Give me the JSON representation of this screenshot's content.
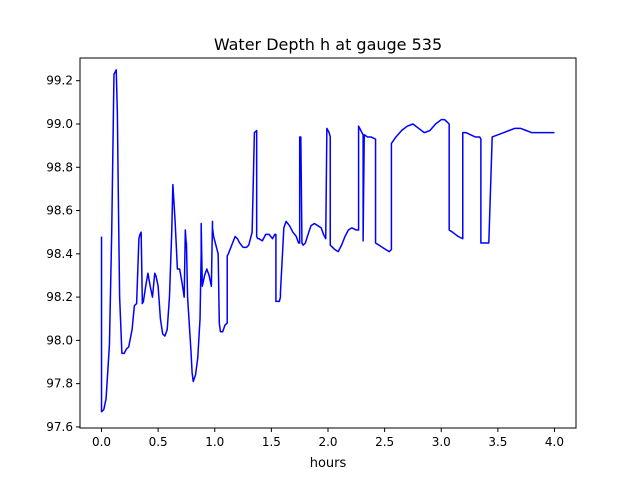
{
  "chart_data": {
    "type": "line",
    "title": "Water Depth h at gauge 535",
    "xlabel": "hours",
    "ylabel": "",
    "xlim": [
      -0.19,
      4.19
    ],
    "ylim": [
      97.595,
      99.305
    ],
    "grid": false,
    "legend": "none",
    "x_ticks": [
      0.0,
      0.5,
      1.0,
      1.5,
      2.0,
      2.5,
      3.0,
      3.5,
      4.0
    ],
    "x_tick_labels": [
      "0.0",
      "0.5",
      "1.0",
      "1.5",
      "2.0",
      "2.5",
      "3.0",
      "3.5",
      "4.0"
    ],
    "y_ticks": [
      97.6,
      97.8,
      98.0,
      98.2,
      98.4,
      98.6,
      98.8,
      99.0,
      99.2
    ],
    "y_tick_labels": [
      "97.6",
      "97.8",
      "98.0",
      "98.2",
      "98.4",
      "98.6",
      "98.8",
      "99.0",
      "99.2"
    ],
    "series": [
      {
        "color": "#0000ff",
        "x": [
          0.0,
          0.0,
          0.0,
          0.02,
          0.04,
          0.07,
          0.09,
          0.11,
          0.13,
          0.14,
          0.15,
          0.16,
          0.18,
          0.2,
          0.22,
          0.24,
          0.27,
          0.29,
          0.31,
          0.33,
          0.34,
          0.35,
          0.36,
          0.36,
          0.37,
          0.39,
          0.41,
          0.43,
          0.45,
          0.47,
          0.48,
          0.5,
          0.52,
          0.54,
          0.56,
          0.58,
          0.6,
          0.62,
          0.63,
          0.65,
          0.67,
          0.69,
          0.71,
          0.73,
          0.74,
          0.75,
          0.75,
          0.76,
          0.79,
          0.8,
          0.81,
          0.83,
          0.85,
          0.87,
          0.88,
          0.88,
          0.89,
          0.91,
          0.93,
          0.95,
          0.97,
          0.98,
          0.98,
          0.99,
          1.01,
          1.03,
          1.04,
          1.05,
          1.07,
          1.09,
          1.11,
          1.11,
          1.12,
          1.15,
          1.18,
          1.2,
          1.22,
          1.25,
          1.28,
          1.3,
          1.33,
          1.35,
          1.37,
          1.37,
          1.38,
          1.39,
          1.42,
          1.45,
          1.48,
          1.51,
          1.53,
          1.54,
          1.54,
          1.57,
          1.58,
          1.58,
          1.61,
          1.63,
          1.66,
          1.69,
          1.72,
          1.74,
          1.75,
          1.75,
          1.76,
          1.77,
          1.78,
          1.8,
          1.83,
          1.85,
          1.88,
          1.91,
          1.94,
          1.96,
          1.98,
          1.99,
          2.01,
          2.02,
          2.02,
          2.04,
          2.06,
          2.09,
          2.12,
          2.15,
          2.18,
          2.21,
          2.25,
          2.27,
          2.27,
          2.29,
          2.31,
          2.31,
          2.32,
          2.35,
          2.38,
          2.42,
          2.42,
          2.45,
          2.48,
          2.51,
          2.54,
          2.56,
          2.56,
          2.6,
          2.65,
          2.7,
          2.75,
          2.8,
          2.85,
          2.9,
          2.95,
          3.0,
          3.03,
          3.05,
          3.07,
          3.07,
          3.1,
          3.15,
          3.19,
          3.19,
          3.22,
          3.26,
          3.3,
          3.34,
          3.35,
          3.35,
          3.38,
          3.42,
          3.42,
          3.45,
          3.5,
          3.55,
          3.6,
          3.65,
          3.7,
          3.75,
          3.8,
          3.85,
          3.9,
          3.95,
          4.0
        ],
        "y": [
          98.48,
          97.98,
          97.67,
          97.68,
          97.73,
          97.98,
          98.5,
          99.23,
          99.25,
          99.05,
          98.6,
          98.2,
          97.94,
          97.94,
          97.96,
          97.97,
          98.05,
          98.16,
          98.17,
          98.47,
          98.49,
          98.5,
          98.19,
          98.17,
          98.18,
          98.25,
          98.31,
          98.25,
          98.2,
          98.31,
          98.3,
          98.25,
          98.1,
          98.03,
          98.02,
          98.05,
          98.2,
          98.5,
          98.72,
          98.55,
          98.33,
          98.33,
          98.27,
          98.2,
          98.51,
          98.43,
          98.45,
          98.2,
          97.95,
          97.85,
          97.81,
          97.84,
          97.92,
          98.1,
          98.4,
          98.54,
          98.25,
          98.3,
          98.33,
          98.3,
          98.25,
          98.55,
          98.52,
          98.48,
          98.44,
          98.4,
          98.08,
          98.04,
          98.04,
          98.07,
          98.08,
          98.39,
          98.4,
          98.44,
          98.48,
          98.47,
          98.45,
          98.43,
          98.43,
          98.44,
          98.5,
          98.96,
          98.97,
          98.48,
          98.47,
          98.47,
          98.46,
          98.49,
          98.49,
          98.47,
          98.49,
          98.49,
          98.18,
          98.18,
          98.2,
          98.22,
          98.52,
          98.55,
          98.53,
          98.5,
          98.48,
          98.45,
          98.45,
          98.94,
          98.94,
          98.45,
          98.44,
          98.45,
          98.5,
          98.53,
          98.54,
          98.53,
          98.52,
          98.49,
          98.47,
          98.98,
          98.96,
          98.94,
          98.44,
          98.43,
          98.42,
          98.41,
          98.44,
          98.48,
          98.51,
          98.52,
          98.51,
          98.51,
          98.99,
          98.97,
          98.95,
          98.46,
          98.95,
          98.94,
          98.94,
          98.93,
          98.45,
          98.44,
          98.43,
          98.42,
          98.41,
          98.42,
          98.91,
          98.94,
          98.97,
          98.99,
          99.0,
          98.98,
          98.96,
          98.97,
          99.0,
          99.02,
          99.02,
          99.01,
          99.0,
          98.51,
          98.5,
          98.48,
          98.47,
          98.96,
          98.96,
          98.95,
          98.94,
          98.94,
          98.93,
          98.45,
          98.45,
          98.45,
          98.45,
          98.94,
          98.95,
          98.96,
          98.97,
          98.98,
          98.98,
          98.97,
          98.96,
          98.96,
          98.96,
          98.96,
          98.96
        ]
      }
    ]
  }
}
